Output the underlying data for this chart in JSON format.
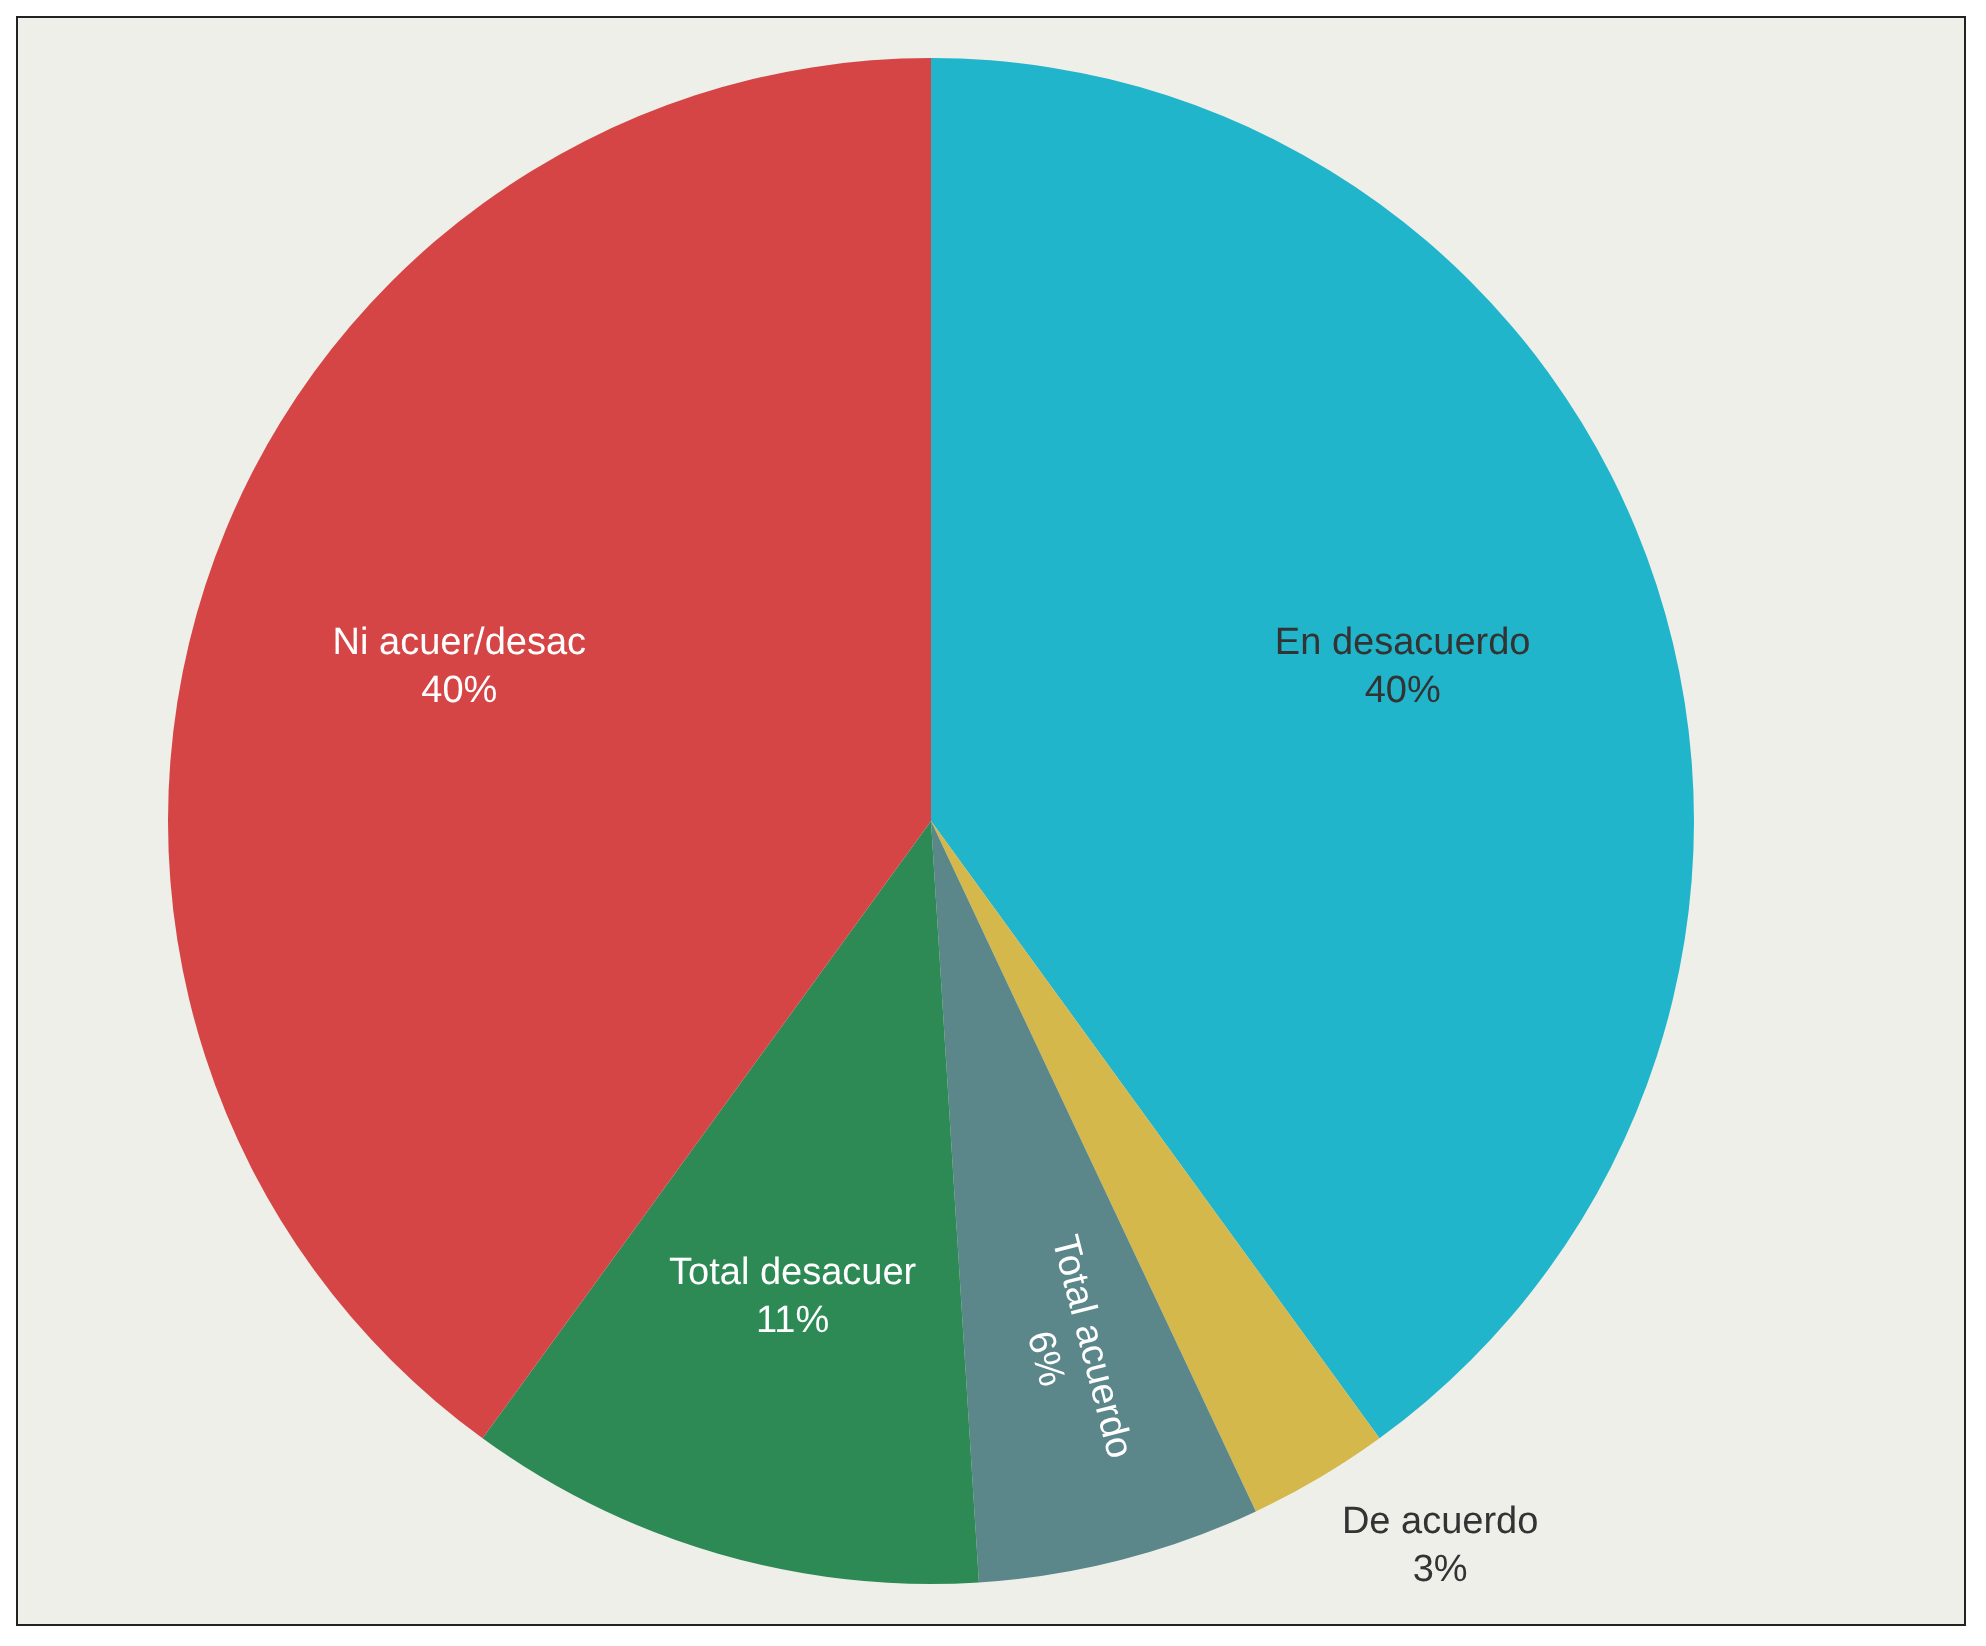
{
  "chart_data": {
    "type": "pie",
    "categories": [
      "En desacuerdo",
      "De acuerdo",
      "Total acuerdo",
      "Total desacuer",
      "Ni acuer/desac"
    ],
    "values": [
      40,
      3,
      6,
      11,
      40
    ],
    "colors": [
      "#21b5cb",
      "#d4b84c",
      "#5b878b",
      "#2e8a55",
      "#d64545"
    ],
    "value_labels": [
      "40%",
      "3%",
      "6%",
      "11%",
      "40%"
    ],
    "legend": false
  }
}
